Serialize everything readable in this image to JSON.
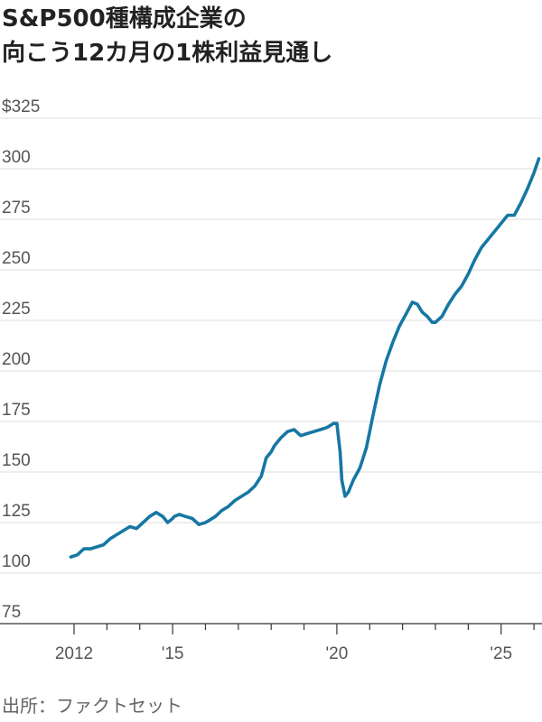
{
  "chart_data": {
    "type": "line",
    "title_lines": [
      "S&P500種構成企業の",
      "向こう12カ月の1株利益見通し"
    ],
    "source": "出所：ファクトセット",
    "y_tick_labels": [
      "$325",
      "300",
      "275",
      "250",
      "225",
      "200",
      "175",
      "150",
      "125",
      "100",
      "75"
    ],
    "y_ticks": [
      325,
      300,
      275,
      250,
      225,
      200,
      175,
      150,
      125,
      100,
      75
    ],
    "ylim": [
      75,
      325
    ],
    "x_tick_labels": [
      {
        "year": 2012,
        "label": "2012"
      },
      {
        "year": 2015,
        "label": "'15"
      },
      {
        "year": 2020,
        "label": "'20"
      },
      {
        "year": 2025,
        "label": "'25"
      }
    ],
    "xlim": [
      2012,
      2026.3
    ],
    "grid": true,
    "color": "#1677a3",
    "series": [
      {
        "x": [
          2011.9,
          2012.1,
          2012.3,
          2012.5,
          2012.7,
          2012.9,
          2013.1,
          2013.3,
          2013.5,
          2013.7,
          2013.9,
          2014.1,
          2014.3,
          2014.5,
          2014.7,
          2014.85,
          2015.0,
          2015.05,
          2015.2,
          2015.4,
          2015.6,
          2015.8,
          2016.0,
          2016.1,
          2016.3,
          2016.5,
          2016.7,
          2016.9,
          2017.1,
          2017.3,
          2017.5,
          2017.7,
          2017.85,
          2018.0,
          2018.1,
          2018.3,
          2018.5,
          2018.7,
          2018.9,
          2019.1,
          2019.3,
          2019.5,
          2019.7,
          2019.9,
          2020.0,
          2020.1,
          2020.15,
          2020.25,
          2020.35,
          2020.5,
          2020.7,
          2020.9,
          2021.1,
          2021.3,
          2021.5,
          2021.7,
          2021.9,
          2022.1,
          2022.3,
          2022.45,
          2022.6,
          2022.75,
          2022.9,
          2023.0,
          2023.2,
          2023.4,
          2023.6,
          2023.8,
          2024.0,
          2024.2,
          2024.4,
          2024.6,
          2024.8,
          2025.0,
          2025.2,
          2025.4,
          2025.6,
          2025.8,
          2026.0,
          2026.15
        ],
        "y": [
          108,
          109,
          112,
          112,
          113,
          114,
          117,
          119,
          121,
          123,
          122,
          125,
          128,
          130,
          128,
          125,
          127,
          128,
          129,
          128,
          127,
          124,
          125,
          126,
          128,
          131,
          133,
          136,
          138,
          140,
          143,
          148,
          157,
          160,
          163,
          167,
          170,
          171,
          168,
          169,
          170,
          171,
          172,
          174,
          174,
          160,
          146,
          138,
          140,
          146,
          152,
          162,
          178,
          193,
          205,
          214,
          222,
          228,
          234,
          233,
          229,
          227,
          224,
          224,
          227,
          233,
          238,
          242,
          248,
          255,
          261,
          265,
          269,
          273,
          277,
          277,
          283,
          290,
          298,
          305
        ]
      }
    ]
  }
}
